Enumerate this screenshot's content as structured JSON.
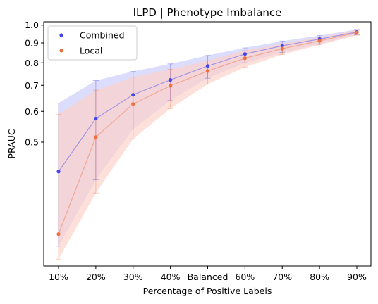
{
  "chart_data": {
    "type": "scatter",
    "title": "ILPD | Phenotype Imbalance",
    "xlabel": "Percentage of Positive Labels",
    "ylabel": "PRAUC",
    "categories": [
      "10%",
      "20%",
      "30%",
      "40%",
      "Balanced",
      "60%",
      "70%",
      "80%",
      "90%"
    ],
    "y_ticks": [
      0.5,
      0.6,
      0.7,
      0.8,
      0.9,
      1.0
    ],
    "y_tick_labels": [
      "0.5",
      "0.6",
      "0.7",
      "0.8",
      "0.9",
      "1.0"
    ],
    "y_scale": "log",
    "ylim": [
      0.24,
      1.02
    ],
    "legend_position": "top-left",
    "grid": false,
    "series": [
      {
        "name": "Combined",
        "color": "#4646e8",
        "band_color": "#c9c9fb",
        "values": [
          0.42,
          0.575,
          0.662,
          0.723,
          0.785,
          0.843,
          0.885,
          0.921,
          0.96
        ],
        "lower": [
          0.27,
          0.4,
          0.54,
          0.64,
          0.73,
          0.8,
          0.85,
          0.895,
          0.945
        ],
        "upper": [
          0.63,
          0.72,
          0.76,
          0.795,
          0.836,
          0.874,
          0.91,
          0.94,
          0.975
        ]
      },
      {
        "name": "Local",
        "color": "#f07040",
        "band_color": "#fdd0c6",
        "values": [
          0.29,
          0.515,
          0.627,
          0.698,
          0.762,
          0.822,
          0.87,
          0.911,
          0.957
        ],
        "lower": [
          0.25,
          0.37,
          0.51,
          0.61,
          0.705,
          0.78,
          0.84,
          0.89,
          0.942
        ],
        "upper": [
          0.59,
          0.68,
          0.735,
          0.77,
          0.81,
          0.86,
          0.895,
          0.93,
          0.97
        ]
      }
    ]
  }
}
